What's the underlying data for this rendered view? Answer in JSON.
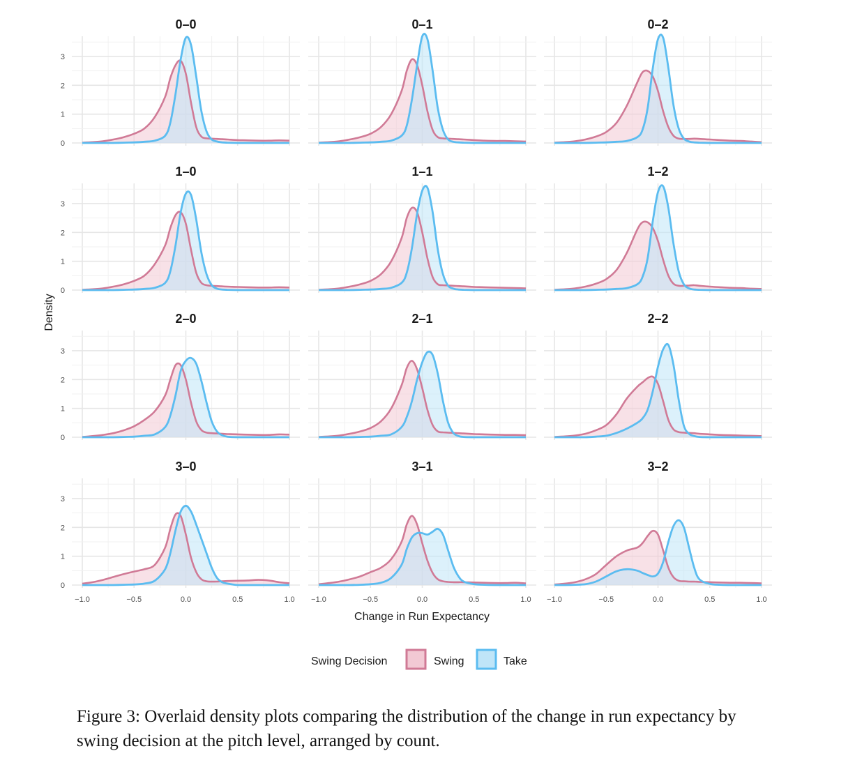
{
  "chart_data": {
    "type": "area",
    "subtype": "density, faceted 4x3",
    "ylabel": "Density",
    "xlabel": "Change in Run Expectancy",
    "xlim": [
      -1.0,
      1.0
    ],
    "ylim": [
      0,
      3.7
    ],
    "xticks": [
      "−1.0",
      "−0.5",
      "0.0",
      "0.5",
      "1.0"
    ],
    "yticks": [
      "0",
      "1",
      "2",
      "3"
    ],
    "grid": true,
    "legend": {
      "title": "Swing Decision",
      "position": "bottom",
      "entries": [
        {
          "label": "Swing",
          "stroke": "#d07a96",
          "fill": "#f2c9d4"
        },
        {
          "label": "Take",
          "stroke": "#5bbcf0",
          "fill": "#bfe5f8"
        }
      ]
    },
    "x_grid": [
      -1.0,
      -0.9,
      -0.8,
      -0.7,
      -0.6,
      -0.5,
      -0.4,
      -0.3,
      -0.2,
      -0.15,
      -0.1,
      -0.05,
      0.0,
      0.05,
      0.1,
      0.15,
      0.2,
      0.25,
      0.3,
      0.35,
      0.4,
      0.5,
      0.6,
      0.7,
      0.8,
      0.9,
      1.0
    ],
    "panels": [
      {
        "title": "0–0",
        "swing": [
          0.01,
          0.03,
          0.06,
          0.12,
          0.2,
          0.32,
          0.5,
          0.9,
          1.6,
          2.25,
          2.7,
          2.85,
          2.4,
          1.4,
          0.55,
          0.22,
          0.16,
          0.15,
          0.14,
          0.13,
          0.12,
          0.1,
          0.09,
          0.08,
          0.08,
          0.09,
          0.08
        ],
        "take": [
          0.0,
          0.0,
          0.0,
          0.0,
          0.01,
          0.02,
          0.04,
          0.08,
          0.25,
          0.7,
          1.7,
          2.9,
          3.65,
          3.4,
          2.3,
          1.1,
          0.4,
          0.12,
          0.05,
          0.02,
          0.01,
          0.0,
          0.0,
          0.0,
          0.0,
          0.0,
          0.0
        ]
      },
      {
        "title": "0–1",
        "swing": [
          0.01,
          0.03,
          0.06,
          0.12,
          0.2,
          0.32,
          0.55,
          1.0,
          1.8,
          2.5,
          2.9,
          2.7,
          2.0,
          1.1,
          0.45,
          0.2,
          0.16,
          0.15,
          0.14,
          0.13,
          0.12,
          0.1,
          0.08,
          0.07,
          0.07,
          0.06,
          0.05
        ],
        "take": [
          0.0,
          0.0,
          0.0,
          0.0,
          0.01,
          0.02,
          0.04,
          0.08,
          0.25,
          0.6,
          1.5,
          2.7,
          3.7,
          3.6,
          2.5,
          1.2,
          0.45,
          0.12,
          0.04,
          0.02,
          0.01,
          0.0,
          0.0,
          0.0,
          0.0,
          0.0,
          0.0
        ]
      },
      {
        "title": "0–2",
        "swing": [
          0.01,
          0.03,
          0.06,
          0.12,
          0.22,
          0.38,
          0.7,
          1.3,
          2.1,
          2.45,
          2.5,
          2.3,
          1.8,
          1.1,
          0.55,
          0.25,
          0.15,
          0.14,
          0.14,
          0.15,
          0.14,
          0.12,
          0.1,
          0.08,
          0.07,
          0.05,
          0.03
        ],
        "take": [
          0.0,
          0.0,
          0.0,
          0.0,
          0.01,
          0.02,
          0.04,
          0.07,
          0.2,
          0.45,
          1.2,
          2.6,
          3.6,
          3.65,
          2.6,
          1.3,
          0.5,
          0.15,
          0.05,
          0.02,
          0.01,
          0.0,
          0.0,
          0.0,
          0.0,
          0.0,
          0.0
        ]
      },
      {
        "title": "1–0",
        "swing": [
          0.01,
          0.03,
          0.06,
          0.12,
          0.2,
          0.32,
          0.5,
          0.9,
          1.55,
          2.15,
          2.6,
          2.7,
          2.3,
          1.4,
          0.6,
          0.25,
          0.17,
          0.15,
          0.14,
          0.13,
          0.12,
          0.11,
          0.1,
          0.09,
          0.09,
          0.1,
          0.09
        ],
        "take": [
          0.0,
          0.0,
          0.0,
          0.0,
          0.01,
          0.02,
          0.04,
          0.08,
          0.25,
          0.65,
          1.55,
          2.7,
          3.35,
          3.3,
          2.45,
          1.3,
          0.55,
          0.17,
          0.05,
          0.02,
          0.01,
          0.0,
          0.0,
          0.0,
          0.0,
          0.0,
          0.0
        ]
      },
      {
        "title": "1–1",
        "swing": [
          0.01,
          0.03,
          0.06,
          0.12,
          0.2,
          0.32,
          0.55,
          1.0,
          1.8,
          2.5,
          2.85,
          2.7,
          2.0,
          1.1,
          0.45,
          0.2,
          0.17,
          0.16,
          0.15,
          0.14,
          0.13,
          0.11,
          0.1,
          0.09,
          0.08,
          0.07,
          0.06
        ],
        "take": [
          0.0,
          0.0,
          0.0,
          0.0,
          0.01,
          0.02,
          0.04,
          0.08,
          0.25,
          0.6,
          1.45,
          2.65,
          3.45,
          3.55,
          2.7,
          1.4,
          0.55,
          0.15,
          0.05,
          0.02,
          0.01,
          0.0,
          0.0,
          0.0,
          0.0,
          0.0,
          0.0
        ]
      },
      {
        "title": "1–2",
        "swing": [
          0.01,
          0.03,
          0.06,
          0.12,
          0.22,
          0.38,
          0.7,
          1.3,
          2.1,
          2.35,
          2.35,
          2.15,
          1.7,
          1.05,
          0.5,
          0.22,
          0.15,
          0.15,
          0.16,
          0.17,
          0.15,
          0.12,
          0.1,
          0.08,
          0.07,
          0.05,
          0.04
        ],
        "take": [
          0.0,
          0.0,
          0.0,
          0.0,
          0.01,
          0.02,
          0.04,
          0.07,
          0.2,
          0.45,
          1.1,
          2.4,
          3.4,
          3.6,
          2.85,
          1.6,
          0.65,
          0.2,
          0.06,
          0.02,
          0.01,
          0.0,
          0.0,
          0.0,
          0.0,
          0.0,
          0.0
        ]
      },
      {
        "title": "2–0",
        "swing": [
          0.01,
          0.04,
          0.08,
          0.14,
          0.24,
          0.38,
          0.6,
          0.9,
          1.45,
          2.0,
          2.5,
          2.5,
          2.0,
          1.2,
          0.55,
          0.25,
          0.16,
          0.14,
          0.13,
          0.12,
          0.11,
          0.1,
          0.09,
          0.08,
          0.08,
          0.1,
          0.09
        ],
        "take": [
          0.0,
          0.0,
          0.0,
          0.0,
          0.01,
          0.02,
          0.05,
          0.1,
          0.35,
          0.75,
          1.45,
          2.3,
          2.65,
          2.75,
          2.55,
          1.95,
          1.2,
          0.55,
          0.2,
          0.07,
          0.02,
          0.0,
          0.0,
          0.0,
          0.0,
          0.0,
          0.0
        ]
      },
      {
        "title": "2–1",
        "swing": [
          0.01,
          0.03,
          0.06,
          0.12,
          0.2,
          0.32,
          0.55,
          1.0,
          1.8,
          2.4,
          2.65,
          2.35,
          1.7,
          0.95,
          0.42,
          0.2,
          0.17,
          0.16,
          0.15,
          0.14,
          0.13,
          0.11,
          0.1,
          0.09,
          0.08,
          0.08,
          0.07
        ],
        "take": [
          0.0,
          0.0,
          0.0,
          0.0,
          0.01,
          0.02,
          0.05,
          0.1,
          0.35,
          0.7,
          1.25,
          2.0,
          2.6,
          2.95,
          2.85,
          2.2,
          1.25,
          0.5,
          0.15,
          0.04,
          0.01,
          0.0,
          0.0,
          0.0,
          0.0,
          0.0,
          0.0
        ]
      },
      {
        "title": "2–2",
        "swing": [
          0.01,
          0.03,
          0.06,
          0.12,
          0.24,
          0.42,
          0.8,
          1.35,
          1.75,
          1.9,
          2.05,
          2.1,
          1.85,
          1.25,
          0.6,
          0.27,
          0.18,
          0.16,
          0.15,
          0.14,
          0.12,
          0.1,
          0.08,
          0.07,
          0.06,
          0.05,
          0.04
        ],
        "take": [
          0.0,
          0.0,
          0.0,
          0.0,
          0.02,
          0.05,
          0.15,
          0.3,
          0.5,
          0.65,
          0.95,
          1.6,
          2.45,
          3.05,
          3.2,
          2.5,
          1.3,
          0.4,
          0.12,
          0.04,
          0.01,
          0.0,
          0.0,
          0.0,
          0.0,
          0.0,
          0.0
        ]
      },
      {
        "title": "3–0",
        "swing": [
          0.05,
          0.1,
          0.18,
          0.28,
          0.38,
          0.47,
          0.55,
          0.7,
          1.3,
          1.95,
          2.45,
          2.4,
          1.75,
          0.95,
          0.45,
          0.2,
          0.13,
          0.12,
          0.12,
          0.13,
          0.14,
          0.15,
          0.16,
          0.18,
          0.16,
          0.1,
          0.06
        ],
        "take": [
          0.0,
          0.0,
          0.0,
          0.0,
          0.01,
          0.02,
          0.05,
          0.15,
          0.55,
          1.1,
          1.9,
          2.55,
          2.75,
          2.55,
          2.1,
          1.6,
          1.1,
          0.6,
          0.25,
          0.1,
          0.05,
          0.0,
          0.0,
          0.0,
          0.0,
          0.0,
          0.0
        ]
      },
      {
        "title": "3–1",
        "swing": [
          0.03,
          0.07,
          0.12,
          0.2,
          0.3,
          0.45,
          0.6,
          0.9,
          1.5,
          2.1,
          2.4,
          2.1,
          1.45,
          0.85,
          0.42,
          0.2,
          0.13,
          0.11,
          0.1,
          0.1,
          0.1,
          0.09,
          0.08,
          0.07,
          0.07,
          0.08,
          0.06
        ],
        "take": [
          0.0,
          0.0,
          0.0,
          0.0,
          0.01,
          0.03,
          0.08,
          0.25,
          0.7,
          1.25,
          1.65,
          1.8,
          1.8,
          1.75,
          1.85,
          1.95,
          1.75,
          1.2,
          0.65,
          0.3,
          0.12,
          0.03,
          0.01,
          0.0,
          0.0,
          0.0,
          0.0
        ]
      },
      {
        "title": "3–2",
        "swing": [
          0.02,
          0.05,
          0.1,
          0.2,
          0.38,
          0.7,
          1.0,
          1.2,
          1.3,
          1.45,
          1.7,
          1.88,
          1.75,
          1.2,
          0.6,
          0.27,
          0.15,
          0.13,
          0.12,
          0.12,
          0.11,
          0.1,
          0.09,
          0.08,
          0.08,
          0.07,
          0.06
        ],
        "take": [
          0.0,
          0.0,
          0.01,
          0.03,
          0.12,
          0.3,
          0.48,
          0.55,
          0.5,
          0.42,
          0.35,
          0.3,
          0.4,
          0.8,
          1.5,
          2.05,
          2.25,
          2.0,
          1.3,
          0.6,
          0.2,
          0.04,
          0.01,
          0.0,
          0.0,
          0.0,
          0.0
        ]
      }
    ]
  },
  "caption": "Figure 3:  Overlaid density plots comparing the distribution of the change in run expectancy by swing decision at the pitch level, arranged by count."
}
